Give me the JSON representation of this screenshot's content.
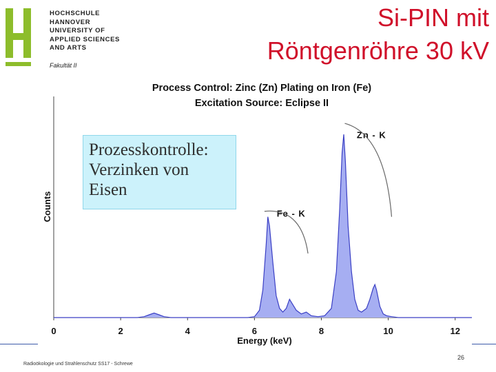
{
  "logo": {
    "lines": [
      "HOCHSCHULE",
      "HANNOVER",
      "UNIVERSITY OF",
      "APPLIED SCIENCES",
      "AND ARTS"
    ],
    "faculty": "Fakultät II",
    "color": "#8dbd2b"
  },
  "slide": {
    "title_line1": "Si-PIN mit",
    "title_line2": "Röntgenröhre 30 kV",
    "callout": [
      "Prozesskontrolle:",
      "Verzinken von",
      "Eisen"
    ],
    "footer": "Radioökologie und Strahlenschutz SS17 - Schrewe",
    "page": "26"
  },
  "chart_data": {
    "type": "area",
    "title": "Process Control: Zinc (Zn) Plating on Iron (Fe)",
    "subtitle": "Excitation Source: Eclipse II",
    "xlabel": "Energy (keV)",
    "ylabel": "Counts",
    "xlim": [
      0,
      12.5
    ],
    "ylim": [
      0,
      1
    ],
    "xticks": [
      "0",
      "2",
      "4",
      "6",
      "8",
      "10",
      "12"
    ],
    "fill_color": "#a6aef2",
    "line_color": "#3a3fc4",
    "series": [
      {
        "x": [
          0,
          2.3,
          2.5,
          2.7,
          2.85,
          3.0,
          3.15,
          3.3,
          3.5,
          3.8,
          5.0,
          5.8,
          6.0,
          6.15,
          6.25,
          6.35,
          6.4,
          6.45,
          6.55,
          6.65,
          6.75,
          6.85,
          6.95,
          7.05,
          7.15,
          7.25,
          7.4,
          7.55,
          7.7,
          7.9,
          8.1,
          8.3,
          8.45,
          8.55,
          8.62,
          8.67,
          8.72,
          8.8,
          8.9,
          9.0,
          9.1,
          9.2,
          9.35,
          9.45,
          9.55,
          9.6,
          9.65,
          9.75,
          9.85,
          9.95,
          10.1,
          10.3,
          10.8,
          11.5,
          12.5
        ],
        "y": [
          0,
          0,
          0,
          0.005,
          0.015,
          0.025,
          0.015,
          0.005,
          0,
          0,
          0,
          0,
          0.005,
          0.04,
          0.15,
          0.4,
          0.55,
          0.5,
          0.3,
          0.12,
          0.05,
          0.03,
          0.05,
          0.1,
          0.07,
          0.04,
          0.02,
          0.03,
          0.01,
          0.005,
          0.01,
          0.05,
          0.25,
          0.6,
          0.9,
          1.0,
          0.85,
          0.5,
          0.25,
          0.1,
          0.04,
          0.03,
          0.05,
          0.1,
          0.16,
          0.18,
          0.15,
          0.06,
          0.02,
          0.01,
          0.005,
          0,
          0,
          0,
          0
        ]
      }
    ],
    "annotations": [
      {
        "text": "Fe - K",
        "x": 7.1,
        "y": 0.55
      },
      {
        "text": "Zn - K",
        "x": 9.5,
        "y": 0.98
      }
    ]
  }
}
